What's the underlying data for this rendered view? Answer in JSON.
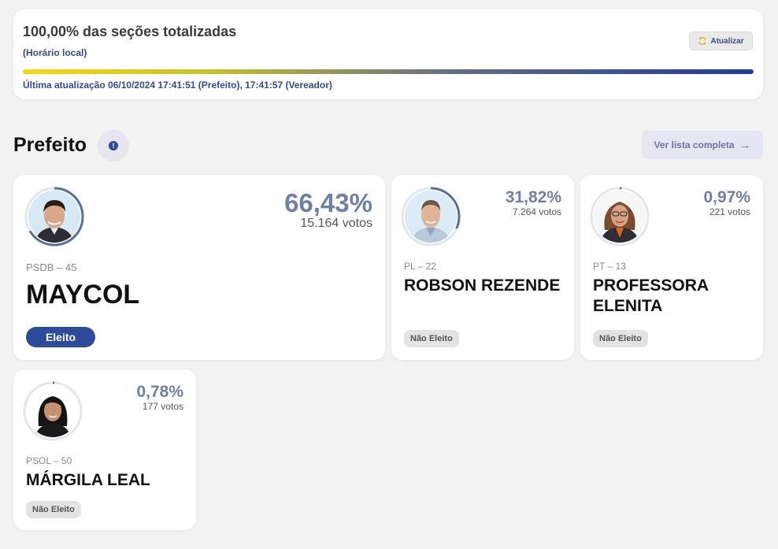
{
  "status": {
    "title": "100,00% das seções totalizadas",
    "subtitle": "(Horário local)",
    "refresh_label": "Atualizar",
    "progress_fraction": 1.0,
    "updated_text": "Última atualização 06/10/2024 17:41:51 (Prefeito), 17:41:57 (Vereador)"
  },
  "section": {
    "title": "Prefeito",
    "info_glyph": "!",
    "list_button_label": "Ver lista completa",
    "list_button_arrow": "→"
  },
  "candidates": [
    {
      "percent": "66,43%",
      "percent_fraction": 0.6643,
      "votes": "15.164 votos",
      "party": "PSDB – 45",
      "name": "MAYCOL",
      "status": "Eleito",
      "elected": true
    },
    {
      "percent": "31,82%",
      "percent_fraction": 0.3182,
      "votes": "7.264 votos",
      "party": "PL – 22",
      "name": "ROBSON REZENDE",
      "status": "Não Eleito",
      "elected": false
    },
    {
      "percent": "0,97%",
      "percent_fraction": 0.0097,
      "votes": "221 votos",
      "party": "PT – 13",
      "name": "PROFESSORA ELENITA",
      "status": "Não Eleito",
      "elected": false
    },
    {
      "percent": "0,78%",
      "percent_fraction": 0.0078,
      "votes": "177 votos",
      "party": "PSOL – 50",
      "name": "MÁRGILA LEAL",
      "status": "Não Eleito",
      "elected": false
    }
  ],
  "colors": {
    "accent": "#2d4b9b",
    "percent_text": "#6e7fa8",
    "ring": "#5b6f9e",
    "background": "#f2f2f2"
  },
  "icons": {
    "refresh": "refresh-icon",
    "info": "info-icon",
    "arrow": "arrow-right-icon"
  }
}
